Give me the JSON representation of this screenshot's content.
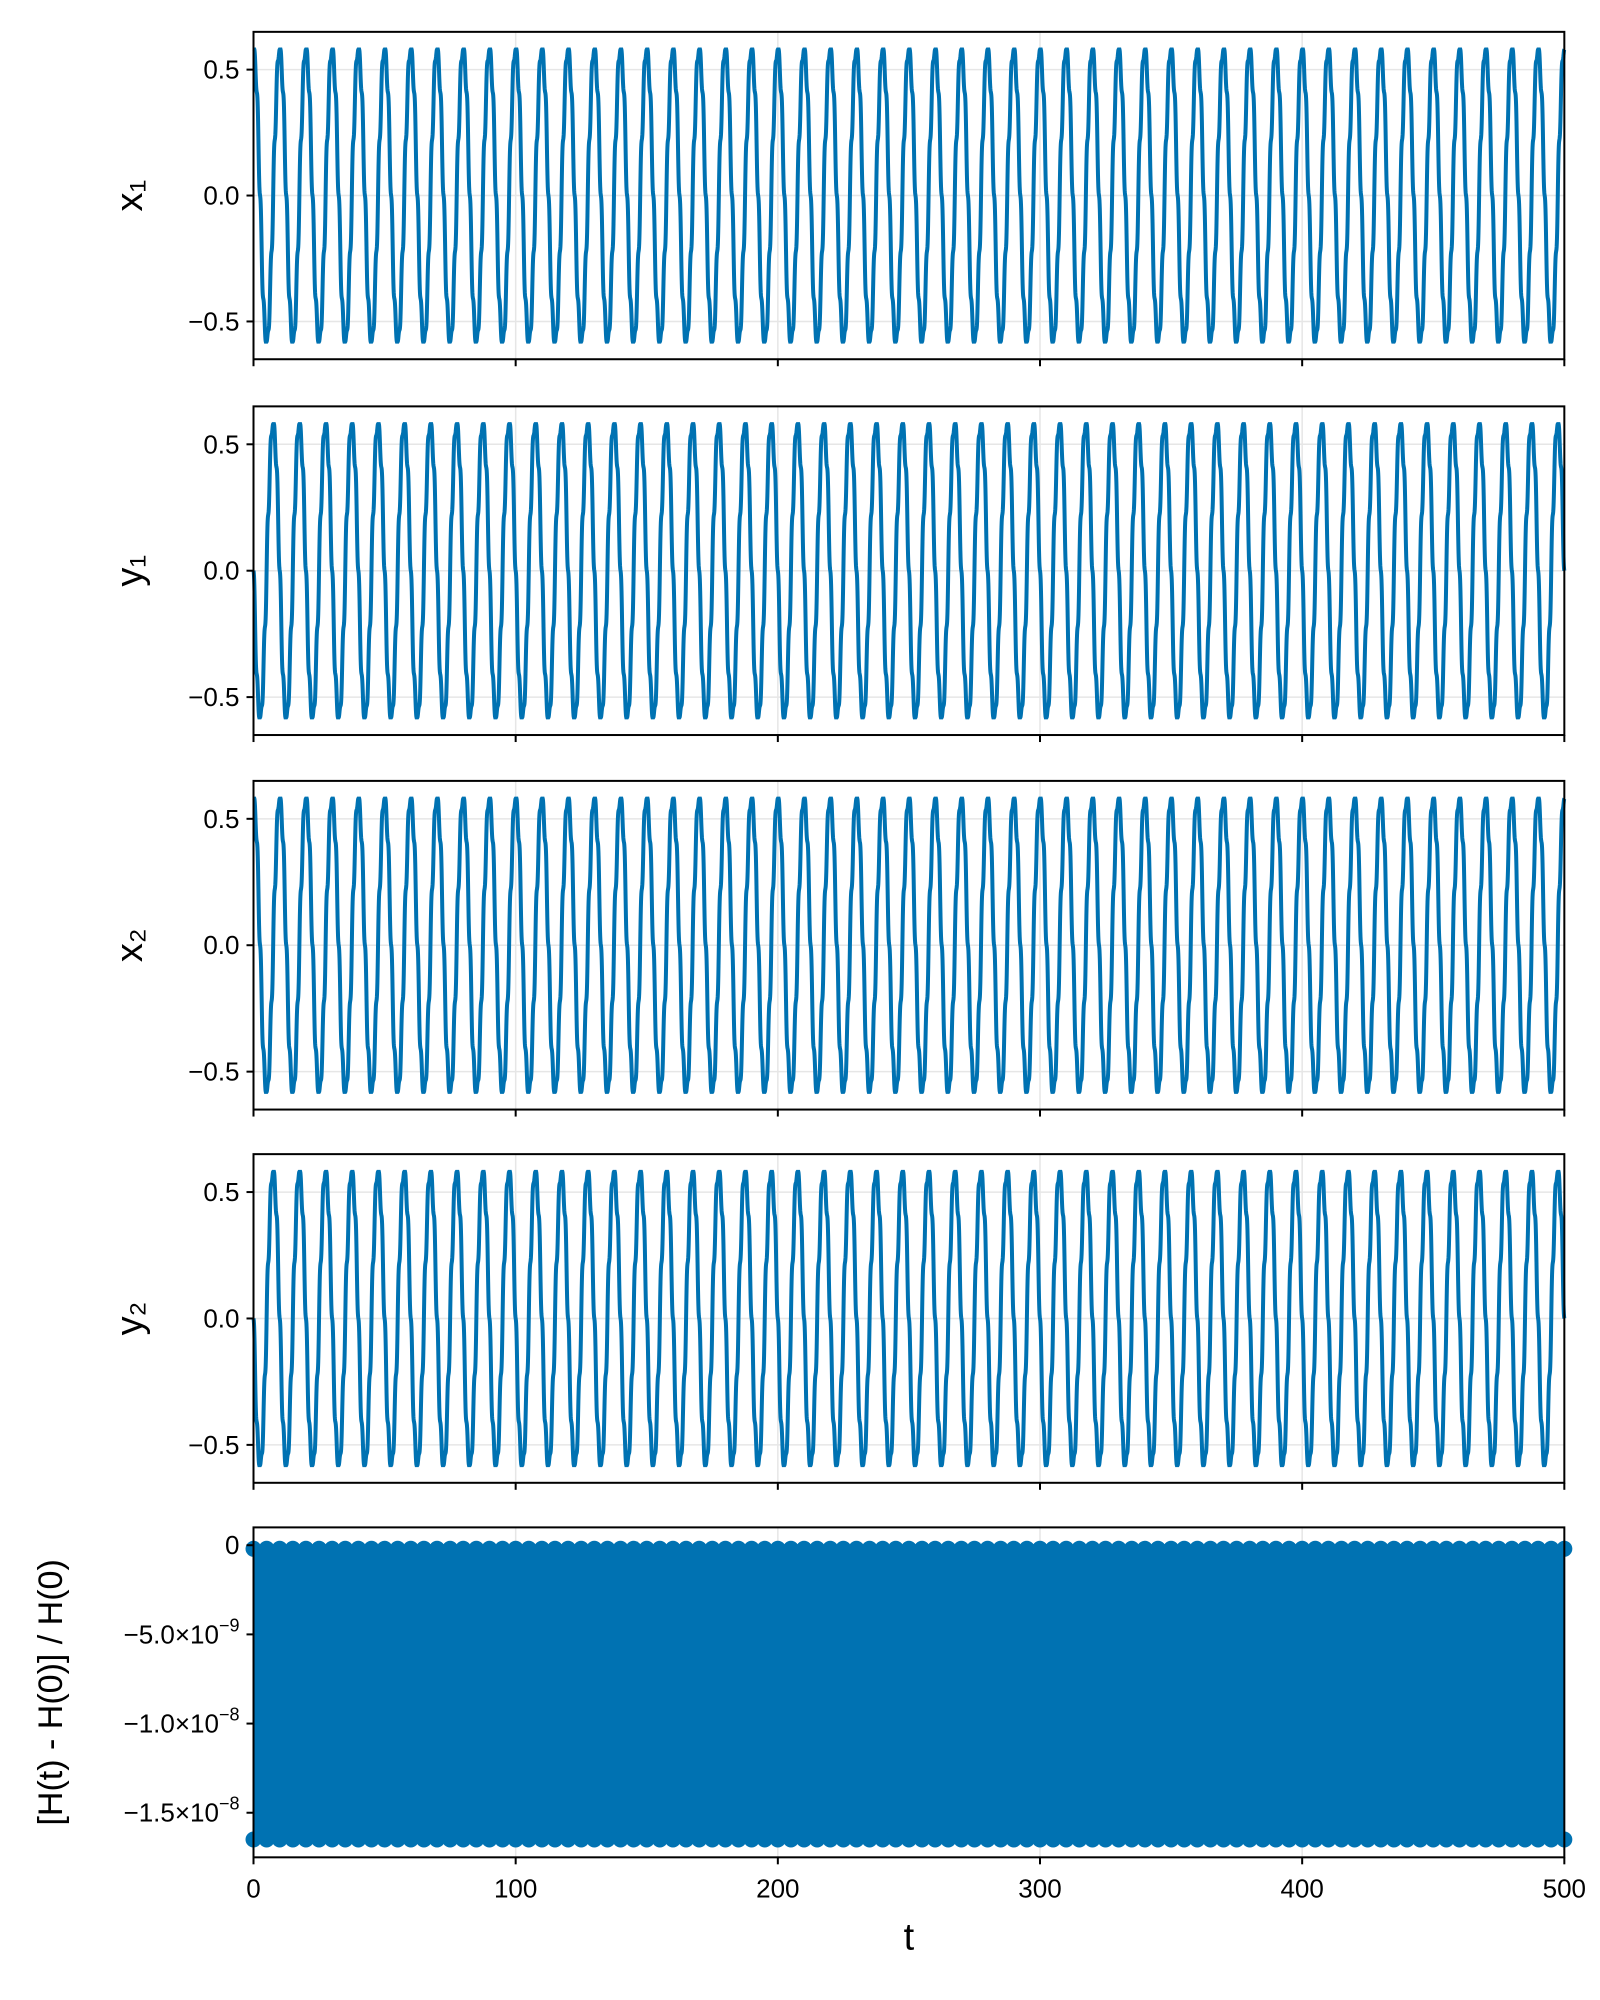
{
  "chart_data": [
    {
      "type": "line",
      "ylabel": "x₁",
      "xlim": [
        0,
        500
      ],
      "ylim": [
        -0.65,
        0.65
      ],
      "yticks": [
        -0.5,
        0.0,
        0.5
      ],
      "ytick_labels": [
        "−0.5",
        "0.0",
        "0.5"
      ],
      "xticks": [
        0,
        100,
        200,
        300,
        400,
        500
      ],
      "grid": true,
      "series": [
        {
          "amplitude": 0.58,
          "cycles": 50,
          "phase_deg": 90,
          "ripple_amplitude": 0.06,
          "ripple_cycles": 400
        }
      ],
      "color": "#0072b2"
    },
    {
      "type": "line",
      "ylabel": "y₁",
      "xlim": [
        0,
        500
      ],
      "ylim": [
        -0.65,
        0.65
      ],
      "yticks": [
        -0.5,
        0.0,
        0.5
      ],
      "ytick_labels": [
        "−0.5",
        "0.0",
        "0.5"
      ],
      "xticks": [
        0,
        100,
        200,
        300,
        400,
        500
      ],
      "grid": true,
      "series": [
        {
          "amplitude": 0.58,
          "cycles": 50,
          "phase_deg": 180,
          "ripple_amplitude": 0.06,
          "ripple_cycles": 400
        }
      ],
      "color": "#0072b2"
    },
    {
      "type": "line",
      "ylabel": "x₂",
      "xlim": [
        0,
        500
      ],
      "ylim": [
        -0.65,
        0.65
      ],
      "yticks": [
        -0.5,
        0.0,
        0.5
      ],
      "ytick_labels": [
        "−0.5",
        "0.0",
        "0.5"
      ],
      "xticks": [
        0,
        100,
        200,
        300,
        400,
        500
      ],
      "grid": true,
      "series": [
        {
          "amplitude": 0.58,
          "cycles": 50,
          "phase_deg": 90,
          "ripple_amplitude": 0.06,
          "ripple_cycles": 400
        }
      ],
      "color": "#0072b2"
    },
    {
      "type": "line",
      "ylabel": "y₂",
      "xlim": [
        0,
        500
      ],
      "ylim": [
        -0.65,
        0.65
      ],
      "yticks": [
        -0.5,
        0.0,
        0.5
      ],
      "ytick_labels": [
        "−0.5",
        "0.0",
        "0.5"
      ],
      "xticks": [
        0,
        100,
        200,
        300,
        400,
        500
      ],
      "grid": true,
      "series": [
        {
          "amplitude": 0.58,
          "cycles": 50,
          "phase_deg": 180,
          "ripple_amplitude": 0.06,
          "ripple_cycles": 400
        }
      ],
      "color": "#0072b2"
    },
    {
      "type": "line",
      "ylabel": "[H(t) - H(0)] / H(0)",
      "xlabel": "t",
      "xlim": [
        0,
        500
      ],
      "ylim": [
        -1.75e-08,
        1e-09
      ],
      "yticks": [
        0,
        -5e-09,
        -1e-08,
        -1.5e-08
      ],
      "ytick_labels": [
        {
          "mantissa": "0",
          "exp": ""
        },
        {
          "mantissa": "−5.0×10",
          "exp": "−9"
        },
        {
          "mantissa": "−1.0×10",
          "exp": "−8"
        },
        {
          "mantissa": "−1.5×10",
          "exp": "−8"
        }
      ],
      "xticks": [
        0,
        100,
        200,
        300,
        400,
        500
      ],
      "xtick_labels": [
        "0",
        "100",
        "200",
        "300",
        "400",
        "500"
      ],
      "grid": true,
      "series": [
        {
          "min": -1.65e-08,
          "max": -2e-10,
          "cycles": 100,
          "ripple_cycles": 800
        }
      ],
      "color": "#0072b2"
    }
  ]
}
